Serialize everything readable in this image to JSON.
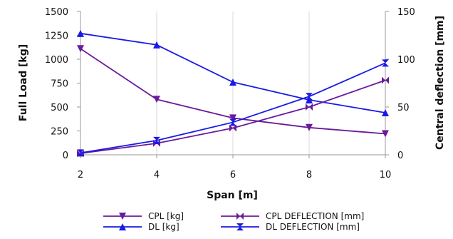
{
  "chart_data": {
    "type": "line",
    "xlabel": "Span [m]",
    "ylabel_left": "Full Load [kg]",
    "ylabel_right": "Central deflection [mm]",
    "x": [
      2,
      4,
      6,
      8,
      10
    ],
    "x_ticks": [
      "2",
      "4",
      "6",
      "8",
      "10"
    ],
    "ylim_left": [
      0,
      1500
    ],
    "y_ticks_left": [
      "0",
      "250",
      "500",
      "750",
      "1000",
      "1250",
      "1500"
    ],
    "ylim_right": [
      0,
      150
    ],
    "y_ticks_right": [
      "0",
      "50",
      "100",
      "150"
    ],
    "grid": "vertical",
    "legend_position": "bottom",
    "series": [
      {
        "name": "CPL [kg]",
        "axis": "left",
        "marker": "triangle-down",
        "color": "#6a1b9a",
        "values": [
          1110,
          580,
          385,
          285,
          220
        ]
      },
      {
        "name": "DL [kg]",
        "axis": "left",
        "marker": "triangle-up",
        "color": "#1a1ae6",
        "values": [
          1270,
          1150,
          760,
          575,
          440
        ]
      },
      {
        "name": "CPL DEFLECTION [mm]",
        "axis": "right",
        "marker": "bowtie",
        "color": "#6a1b9a",
        "values": [
          1.5,
          12,
          28,
          50,
          78
        ]
      },
      {
        "name": "DL DEFLECTION [mm]",
        "axis": "right",
        "marker": "hourglass",
        "color": "#1a1ae6",
        "values": [
          2,
          15,
          34,
          61,
          96
        ]
      }
    ]
  }
}
